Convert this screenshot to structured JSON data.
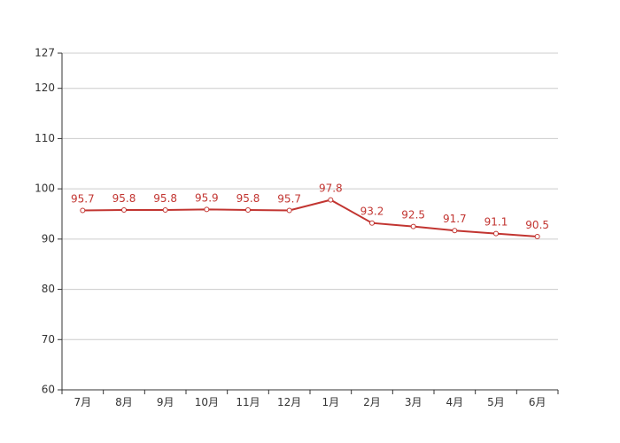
{
  "chart_data": {
    "type": "line",
    "title": "",
    "xlabel": "",
    "ylabel": "",
    "categories": [
      "7月",
      "8月",
      "9月",
      "10月",
      "11月",
      "12月",
      "1月",
      "2月",
      "3月",
      "4月",
      "5月",
      "6月"
    ],
    "series": [
      {
        "values": [
          95.7,
          95.8,
          95.8,
          95.9,
          95.8,
          95.7,
          97.8,
          93.2,
          92.5,
          91.7,
          91.1,
          90.5
        ],
        "color": "#c23531"
      }
    ],
    "ylim": [
      60,
      127
    ],
    "yticks": [
      60,
      70,
      80,
      90,
      100,
      110,
      120,
      127
    ],
    "grid": true,
    "legend": "none",
    "data_labels": true
  }
}
